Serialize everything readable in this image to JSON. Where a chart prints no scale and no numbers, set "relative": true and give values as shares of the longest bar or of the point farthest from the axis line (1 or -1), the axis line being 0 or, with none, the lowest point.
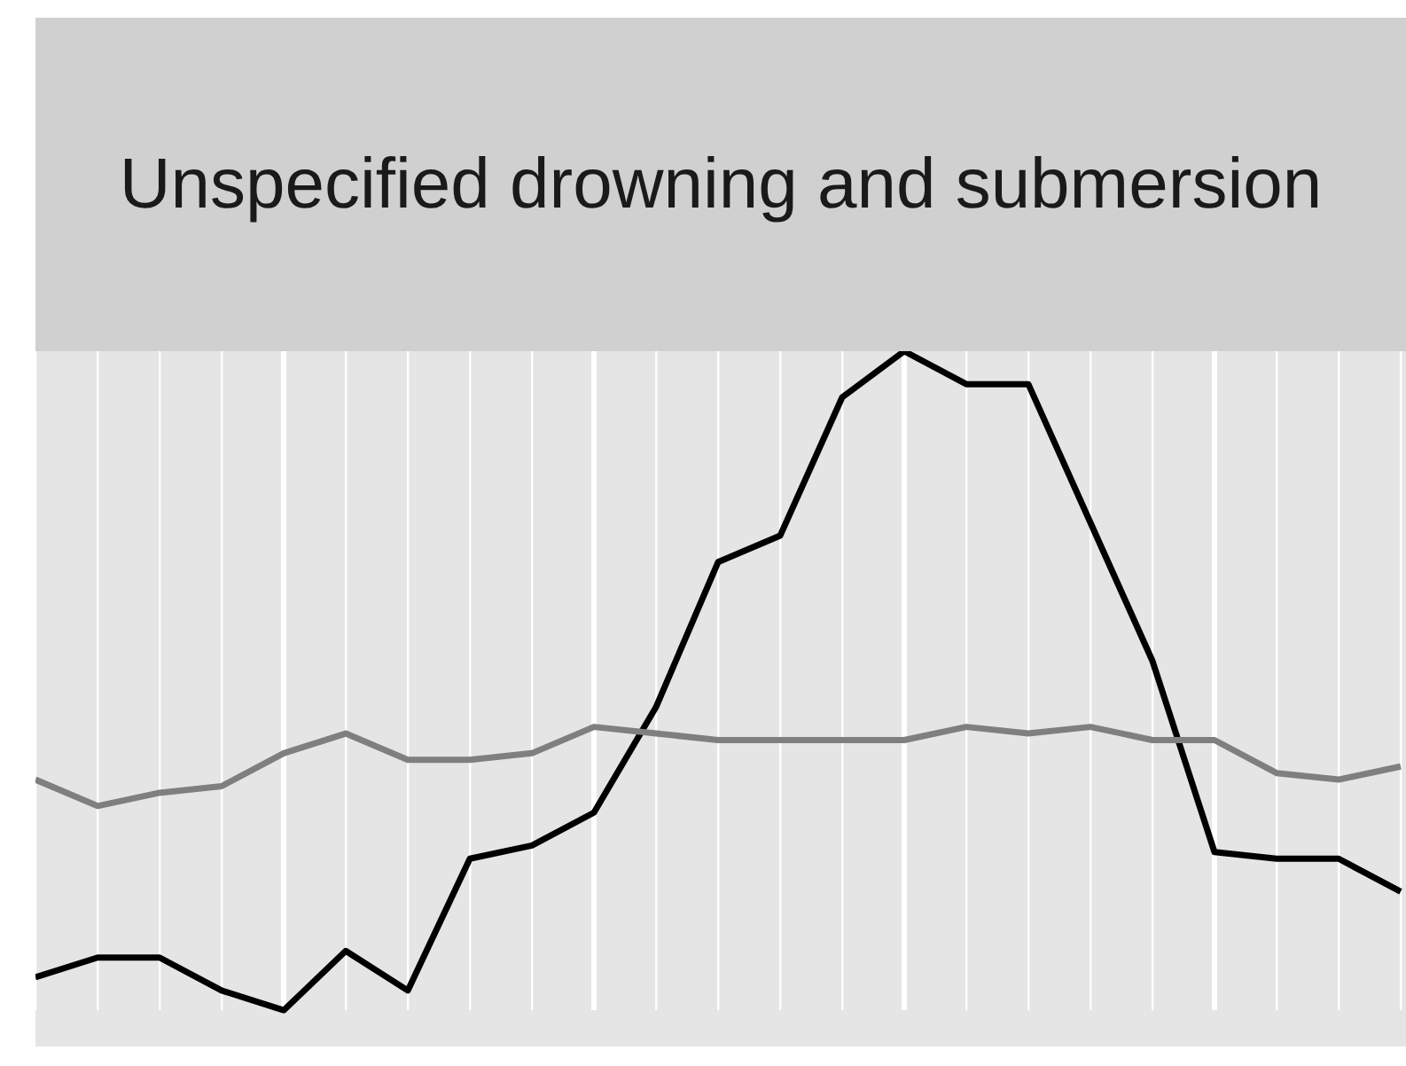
{
  "chart_data": {
    "type": "line",
    "title": "Unspecified drowning and submersion",
    "relative": true,
    "grid": "x",
    "categories": [
      null,
      null,
      null,
      null,
      null,
      null,
      null,
      null,
      null,
      null,
      null,
      null,
      null,
      null,
      null,
      null,
      null,
      null,
      null,
      null,
      null,
      null,
      null
    ],
    "series": [
      {
        "color": "#7f7f7f",
        "values": [
          0.35,
          0.31,
          0.33,
          0.34,
          0.39,
          0.42,
          0.38,
          0.38,
          0.39,
          0.43,
          0.42,
          0.41,
          0.41,
          0.41,
          0.41,
          0.43,
          0.42,
          0.43,
          0.41,
          0.41,
          0.36,
          0.35,
          0.37
        ]
      },
      {
        "color": "#000000",
        "values": [
          0.05,
          0.08,
          0.08,
          0.03,
          0,
          0.09,
          0.03,
          0.23,
          0.25,
          0.3,
          0.46,
          0.68,
          0.72,
          0.93,
          1,
          0.95,
          0.95,
          0.74,
          0.53,
          0.24,
          0.23,
          0.23,
          0.18
        ]
      }
    ]
  }
}
